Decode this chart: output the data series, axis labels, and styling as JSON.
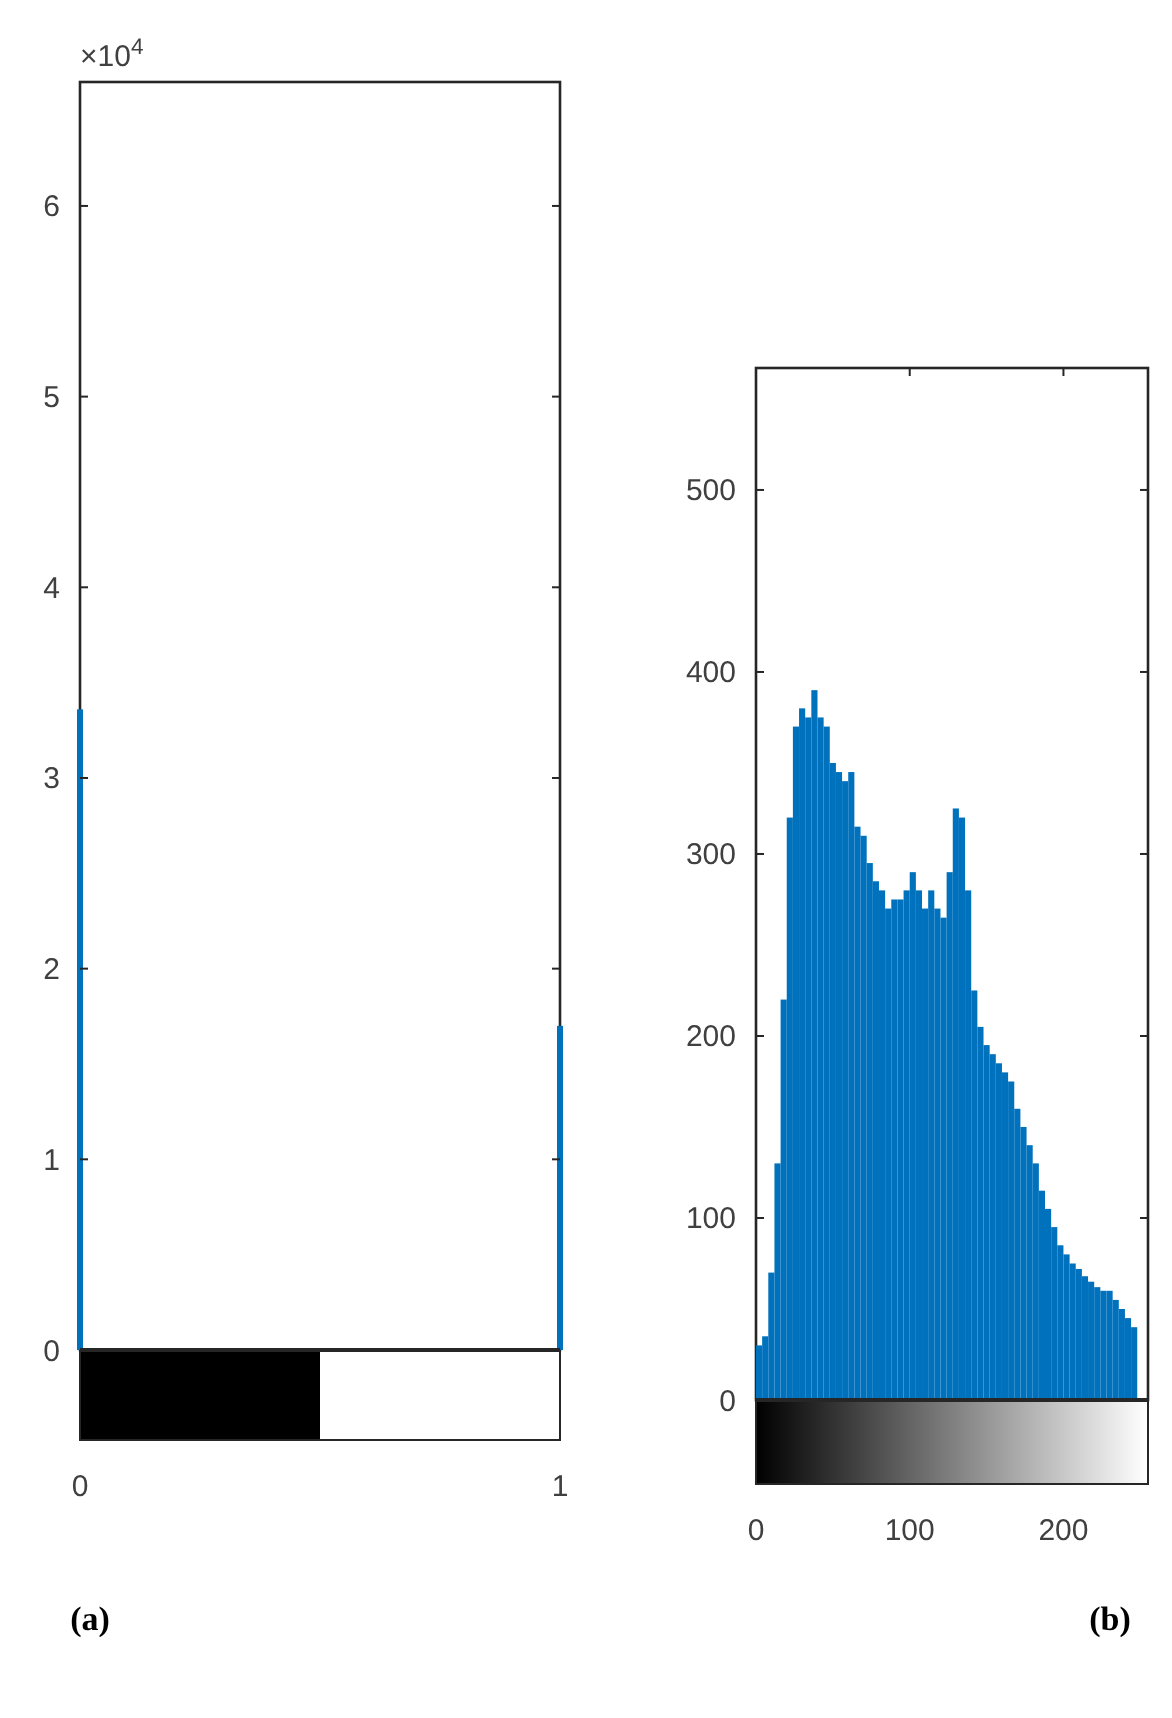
{
  "chart_data": [
    {
      "type": "bar",
      "x": [
        0,
        1
      ],
      "values": [
        3.36,
        1.7
      ],
      "color": "#0072bd",
      "xlim": [
        0,
        1
      ],
      "xticks": [
        0,
        1
      ],
      "ylim": [
        0,
        6.65
      ],
      "yticks": [
        0,
        1,
        2,
        3,
        4,
        5,
        6
      ],
      "annotations": [
        "×10$^{4}$",
        "(a)"
      ]
    },
    {
      "type": "histogram",
      "color": "#0072bd",
      "xlim": [
        0,
        255
      ],
      "xticks": [
        0,
        100,
        200
      ],
      "ylim": [
        0,
        567
      ],
      "yticks": [
        0,
        100,
        200,
        300,
        400,
        500
      ],
      "bins": [
        0,
        4,
        8,
        12,
        16,
        20,
        24,
        28,
        32,
        36,
        40,
        44,
        48,
        52,
        56,
        60,
        64,
        68,
        72,
        76,
        80,
        84,
        88,
        92,
        96,
        100,
        104,
        108,
        112,
        116,
        120,
        124,
        128,
        132,
        136,
        140,
        144,
        148,
        152,
        156,
        160,
        164,
        168,
        172,
        176,
        180,
        184,
        188,
        192,
        196,
        200,
        204,
        208,
        212,
        216,
        220,
        224,
        228,
        232,
        236,
        240,
        244,
        248
      ],
      "values": [
        30,
        35,
        70,
        130,
        220,
        320,
        370,
        380,
        375,
        390,
        375,
        370,
        350,
        345,
        340,
        345,
        315,
        310,
        295,
        285,
        280,
        270,
        275,
        275,
        280,
        290,
        280,
        270,
        280,
        270,
        265,
        290,
        325,
        320,
        280,
        225,
        205,
        195,
        190,
        185,
        180,
        175,
        160,
        150,
        140,
        130,
        115,
        105,
        95,
        85,
        80,
        75,
        72,
        68,
        65,
        62,
        60,
        60,
        55,
        50,
        45,
        40
      ],
      "annotations": [
        "(b)"
      ]
    }
  ]
}
